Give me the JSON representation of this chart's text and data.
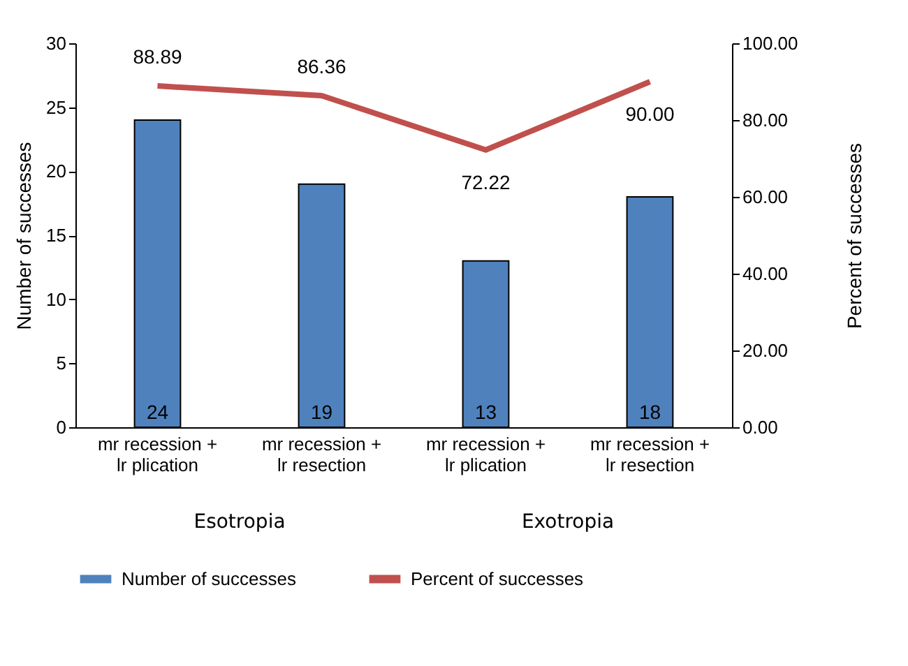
{
  "chart_data": {
    "type": "bar",
    "categories": [
      "mr recession + lr plication",
      "mr recession + lr resection",
      "mr recession + lr plication",
      "mr recession + lr resection"
    ],
    "series": [
      {
        "name": "Number of successes",
        "color": "#4f81bd",
        "values": [
          24,
          19,
          13,
          18
        ],
        "value_labels": [
          "24",
          "19",
          "13",
          "18"
        ]
      },
      {
        "name": "Percent of successes",
        "type": "line",
        "axis": "y2",
        "color": "#c0504d",
        "values": [
          88.89,
          86.36,
          72.22,
          90.0
        ],
        "value_labels": [
          "88.89",
          "86.36",
          "72.22",
          "90.00"
        ]
      }
    ],
    "ylabel": "Number of successes",
    "y2label": "Percent of successes",
    "ylim": [
      0,
      30
    ],
    "yticks": [
      0,
      5,
      10,
      15,
      20,
      25,
      30
    ],
    "y2lim": [
      0,
      100
    ],
    "y2ticks": [
      {
        "value": 0,
        "label": "0.00"
      },
      {
        "value": 20,
        "label": "20.00"
      },
      {
        "value": 40,
        "label": "40.00"
      },
      {
        "value": 60,
        "label": "60.00"
      },
      {
        "value": 80,
        "label": "80.00"
      },
      {
        "value": 100,
        "label": "100.00"
      }
    ],
    "annotations": [
      "Esotropia",
      "Exotropia"
    ],
    "grid": false,
    "legend": "bottom",
    "marker": "none"
  }
}
